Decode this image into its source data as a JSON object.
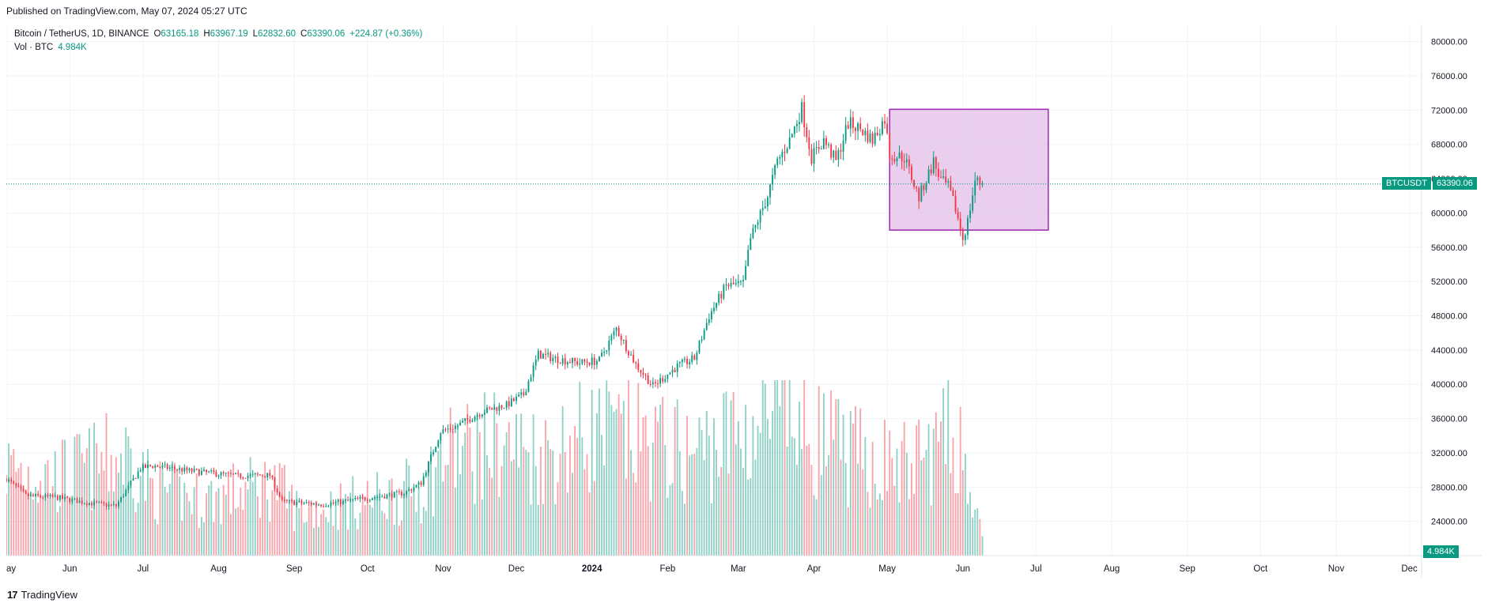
{
  "header": {
    "published": "Published on TradingView.com, May 07, 2024 05:27 UTC"
  },
  "legend": {
    "symbol": "Bitcoin / TetherUS, 1D, BINANCE",
    "open_label": "O",
    "open": "63165.18",
    "high_label": "H",
    "high": "63967.19",
    "low_label": "L",
    "low": "62832.60",
    "close_label": "C",
    "close": "63390.06",
    "change": "+224.87 (+0.36%)",
    "vol_label": "Vol · BTC",
    "vol_value": "4.984K"
  },
  "price_tag": {
    "symbol": "BTCUSDT",
    "price": "63390.06"
  },
  "volume_tag": "4.984K",
  "footer": {
    "brand": "TradingView"
  },
  "colors": {
    "up": "#089981",
    "down": "#f23645",
    "box_fill": "#e1bee7",
    "box_border": "#9c27b0",
    "grid": "#f0f3fa"
  },
  "chart_data": {
    "type": "candlestick",
    "ylim": [
      20000,
      82000
    ],
    "y_ticks": [
      "24000.00",
      "28000.00",
      "32000.00",
      "36000.00",
      "40000.00",
      "44000.00",
      "48000.00",
      "52000.00",
      "56000.00",
      "60000.00",
      "64000.00",
      "68000.00",
      "72000.00",
      "76000.00",
      "80000.00"
    ],
    "x_ticks": [
      "ay",
      "Jun",
      "Jul",
      "Aug",
      "Sep",
      "Oct",
      "Nov",
      "Dec",
      "2024",
      "Feb",
      "Mar",
      "Apr",
      "May",
      "Jun",
      "Jul",
      "Aug",
      "Sep",
      "Oct",
      "Nov",
      "Dec"
    ],
    "x_tick_days": [
      0,
      26,
      56,
      87,
      118,
      148,
      179,
      209,
      240,
      271,
      300,
      331,
      361,
      392,
      422,
      453,
      484,
      514,
      545,
      575
    ],
    "x_range_days": [
      0,
      580
    ],
    "last_price": 63390.06,
    "rectangle": {
      "day_start": 362,
      "day_end": 427,
      "price_top": 72100,
      "price_bottom": 58000
    },
    "anchors": [
      [
        0,
        29000
      ],
      [
        8,
        27000
      ],
      [
        20,
        26800
      ],
      [
        35,
        26100
      ],
      [
        45,
        25800
      ],
      [
        55,
        30200
      ],
      [
        60,
        30500
      ],
      [
        75,
        29900
      ],
      [
        95,
        29300
      ],
      [
        108,
        29400
      ],
      [
        113,
        26300
      ],
      [
        130,
        26000
      ],
      [
        150,
        26800
      ],
      [
        163,
        27300
      ],
      [
        170,
        28500
      ],
      [
        178,
        34500
      ],
      [
        185,
        35200
      ],
      [
        195,
        36800
      ],
      [
        205,
        37600
      ],
      [
        212,
        38800
      ],
      [
        218,
        43500
      ],
      [
        225,
        43000
      ],
      [
        235,
        42500
      ],
      [
        243,
        42800
      ],
      [
        250,
        46500
      ],
      [
        258,
        42300
      ],
      [
        265,
        39800
      ],
      [
        275,
        42100
      ],
      [
        282,
        43000
      ],
      [
        288,
        48000
      ],
      [
        295,
        51500
      ],
      [
        302,
        51700
      ],
      [
        305,
        57000
      ],
      [
        312,
        62000
      ],
      [
        316,
        66000
      ],
      [
        321,
        68500
      ],
      [
        326,
        72200
      ],
      [
        330,
        66500
      ],
      [
        335,
        68500
      ],
      [
        340,
        66000
      ],
      [
        345,
        70500
      ],
      [
        350,
        69800
      ],
      [
        355,
        68500
      ],
      [
        360,
        71000
      ],
      [
        362,
        66800
      ],
      [
        368,
        66500
      ],
      [
        374,
        61800
      ],
      [
        380,
        66000
      ],
      [
        383,
        63800
      ],
      [
        386,
        63000
      ],
      [
        389,
        60500
      ],
      [
        392,
        57000
      ],
      [
        394,
        59000
      ],
      [
        397,
        63800
      ],
      [
        400,
        63390
      ]
    ],
    "volume_anchors": [
      [
        0,
        4.0
      ],
      [
        20,
        3.5
      ],
      [
        50,
        4.5
      ],
      [
        60,
        3.0
      ],
      [
        80,
        2.5
      ],
      [
        110,
        3.2
      ],
      [
        120,
        2.0
      ],
      [
        150,
        2.5
      ],
      [
        170,
        3.0
      ],
      [
        180,
        4.5
      ],
      [
        200,
        5.0
      ],
      [
        220,
        4.5
      ],
      [
        240,
        5.5
      ],
      [
        265,
        5.0
      ],
      [
        280,
        4.5
      ],
      [
        300,
        5.5
      ],
      [
        315,
        6.0
      ],
      [
        330,
        5.5
      ],
      [
        345,
        4.5
      ],
      [
        370,
        4.0
      ],
      [
        390,
        5.5
      ],
      [
        400,
        0.6
      ]
    ]
  }
}
